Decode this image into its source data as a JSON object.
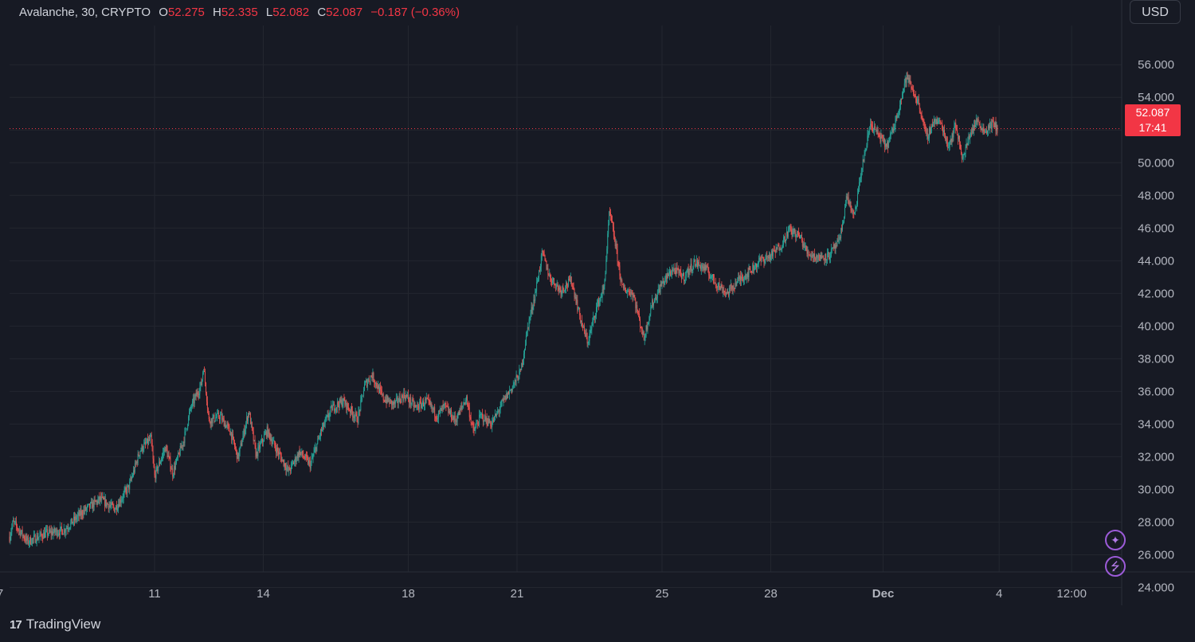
{
  "header": {
    "symbol": "Avalanche, 30, CRYPTO",
    "o_label": "O",
    "o_value": "52.275",
    "h_label": "H",
    "h_value": "52.335",
    "l_label": "L",
    "l_value": "52.082",
    "c_label": "C",
    "c_value": "52.087",
    "change": "−0.187 (−0.36%)"
  },
  "currency_button": "USD",
  "last_price": {
    "price": "52.087",
    "countdown": "17:41"
  },
  "footer": {
    "logo_mark": "17",
    "brand": "TradingView"
  },
  "icons": [
    "sparkle-icon",
    "lightning-icon",
    "tradingview-logo-icon"
  ],
  "colors": {
    "up": "#26a69a",
    "down": "#ef5350",
    "background": "#171a24",
    "accent": "#f23645",
    "icon_purple": "#9c5bd8"
  },
  "chart_data": {
    "type": "candlestick",
    "title": "Avalanche, 30, CRYPTO",
    "interval": "30",
    "ylim": [
      23.0,
      58.4
    ],
    "y_ticks": [
      "56.000",
      "54.000",
      "52.000",
      "50.000",
      "48.000",
      "46.000",
      "44.000",
      "42.000",
      "40.000",
      "38.000",
      "36.000",
      "34.000",
      "32.000",
      "30.000",
      "28.000",
      "26.000",
      "24.000"
    ],
    "x_ticks": [
      "7",
      "11",
      "14",
      "18",
      "21",
      "25",
      "28",
      "Dec",
      "4",
      "12:00"
    ],
    "grid": true,
    "current_price_line": 52.087,
    "price_path": [
      {
        "d": 0,
        "p": 27.1
      },
      {
        "d": 0.1,
        "p": 28.0
      },
      {
        "d": 0.5,
        "p": 26.8
      },
      {
        "d": 1.0,
        "p": 27.3
      },
      {
        "d": 1.5,
        "p": 27.5
      },
      {
        "d": 2.0,
        "p": 28.6
      },
      {
        "d": 2.5,
        "p": 29.4
      },
      {
        "d": 2.9,
        "p": 28.8
      },
      {
        "d": 3.3,
        "p": 30.2
      },
      {
        "d": 3.6,
        "p": 32.4
      },
      {
        "d": 3.9,
        "p": 33.1
      },
      {
        "d": 4.0,
        "p": 30.8
      },
      {
        "d": 4.3,
        "p": 32.6
      },
      {
        "d": 4.5,
        "p": 31.0
      },
      {
        "d": 4.8,
        "p": 33.0
      },
      {
        "d": 5.0,
        "p": 35.0
      },
      {
        "d": 5.3,
        "p": 36.5
      },
      {
        "d": 5.35,
        "p": 37.6
      },
      {
        "d": 5.5,
        "p": 34.2
      },
      {
        "d": 5.8,
        "p": 34.5
      },
      {
        "d": 6.1,
        "p": 33.5
      },
      {
        "d": 6.3,
        "p": 31.9
      },
      {
        "d": 6.6,
        "p": 34.8
      },
      {
        "d": 6.8,
        "p": 32.1
      },
      {
        "d": 7.1,
        "p": 33.6
      },
      {
        "d": 7.4,
        "p": 32.3
      },
      {
        "d": 7.7,
        "p": 31.1
      },
      {
        "d": 8.0,
        "p": 32.3
      },
      {
        "d": 8.3,
        "p": 31.5
      },
      {
        "d": 8.6,
        "p": 33.6
      },
      {
        "d": 8.9,
        "p": 35.0
      },
      {
        "d": 9.2,
        "p": 35.4
      },
      {
        "d": 9.6,
        "p": 34.3
      },
      {
        "d": 9.8,
        "p": 36.4
      },
      {
        "d": 10.0,
        "p": 37.0
      },
      {
        "d": 10.3,
        "p": 35.6
      },
      {
        "d": 10.6,
        "p": 35.2
      },
      {
        "d": 10.9,
        "p": 35.8
      },
      {
        "d": 11.2,
        "p": 35.0
      },
      {
        "d": 11.5,
        "p": 35.4
      },
      {
        "d": 11.8,
        "p": 34.5
      },
      {
        "d": 12.0,
        "p": 35.1
      },
      {
        "d": 12.3,
        "p": 34.2
      },
      {
        "d": 12.6,
        "p": 35.6
      },
      {
        "d": 12.8,
        "p": 33.5
      },
      {
        "d": 13.0,
        "p": 34.5
      },
      {
        "d": 13.3,
        "p": 34.0
      },
      {
        "d": 13.6,
        "p": 35.3
      },
      {
        "d": 13.9,
        "p": 36.4
      },
      {
        "d": 14.1,
        "p": 37.2
      },
      {
        "d": 14.3,
        "p": 40.0
      },
      {
        "d": 14.5,
        "p": 42.0
      },
      {
        "d": 14.7,
        "p": 44.5
      },
      {
        "d": 14.9,
        "p": 43.0
      },
      {
        "d": 15.2,
        "p": 42.2
      },
      {
        "d": 15.5,
        "p": 42.8
      },
      {
        "d": 15.8,
        "p": 40.0
      },
      {
        "d": 15.95,
        "p": 39.0
      },
      {
        "d": 16.2,
        "p": 41.2
      },
      {
        "d": 16.4,
        "p": 42.3
      },
      {
        "d": 16.55,
        "p": 47.0
      },
      {
        "d": 16.7,
        "p": 45.2
      },
      {
        "d": 16.9,
        "p": 42.3
      },
      {
        "d": 17.2,
        "p": 42.0
      },
      {
        "d": 17.5,
        "p": 39.2
      },
      {
        "d": 17.7,
        "p": 41.2
      },
      {
        "d": 18.0,
        "p": 42.6
      },
      {
        "d": 18.3,
        "p": 43.5
      },
      {
        "d": 18.6,
        "p": 43.0
      },
      {
        "d": 18.9,
        "p": 43.9
      },
      {
        "d": 19.2,
        "p": 43.5
      },
      {
        "d": 19.5,
        "p": 42.6
      },
      {
        "d": 19.8,
        "p": 42.0
      },
      {
        "d": 20.1,
        "p": 42.8
      },
      {
        "d": 20.4,
        "p": 43.3
      },
      {
        "d": 20.7,
        "p": 44.0
      },
      {
        "d": 21.0,
        "p": 44.3
      },
      {
        "d": 21.3,
        "p": 45.0
      },
      {
        "d": 21.5,
        "p": 45.9
      },
      {
        "d": 21.8,
        "p": 45.5
      },
      {
        "d": 22.0,
        "p": 44.5
      },
      {
        "d": 22.3,
        "p": 44.2
      },
      {
        "d": 22.6,
        "p": 44.3
      },
      {
        "d": 22.9,
        "p": 45.2
      },
      {
        "d": 23.1,
        "p": 48.0
      },
      {
        "d": 23.3,
        "p": 46.6
      },
      {
        "d": 23.5,
        "p": 49.5
      },
      {
        "d": 23.75,
        "p": 52.4
      },
      {
        "d": 24.0,
        "p": 51.6
      },
      {
        "d": 24.2,
        "p": 51.0
      },
      {
        "d": 24.4,
        "p": 52.2
      },
      {
        "d": 24.6,
        "p": 54.0
      },
      {
        "d": 24.75,
        "p": 55.3
      },
      {
        "d": 24.9,
        "p": 54.5
      },
      {
        "d": 25.1,
        "p": 53.5
      },
      {
        "d": 25.3,
        "p": 51.5
      },
      {
        "d": 25.5,
        "p": 52.6
      },
      {
        "d": 25.7,
        "p": 52.4
      },
      {
        "d": 25.9,
        "p": 51.0
      },
      {
        "d": 26.1,
        "p": 52.3
      },
      {
        "d": 26.3,
        "p": 50.2
      },
      {
        "d": 26.5,
        "p": 51.8
      },
      {
        "d": 26.7,
        "p": 52.6
      },
      {
        "d": 26.9,
        "p": 51.9
      },
      {
        "d": 27.1,
        "p": 52.4
      },
      {
        "d": 27.25,
        "p": 52.087
      }
    ]
  }
}
